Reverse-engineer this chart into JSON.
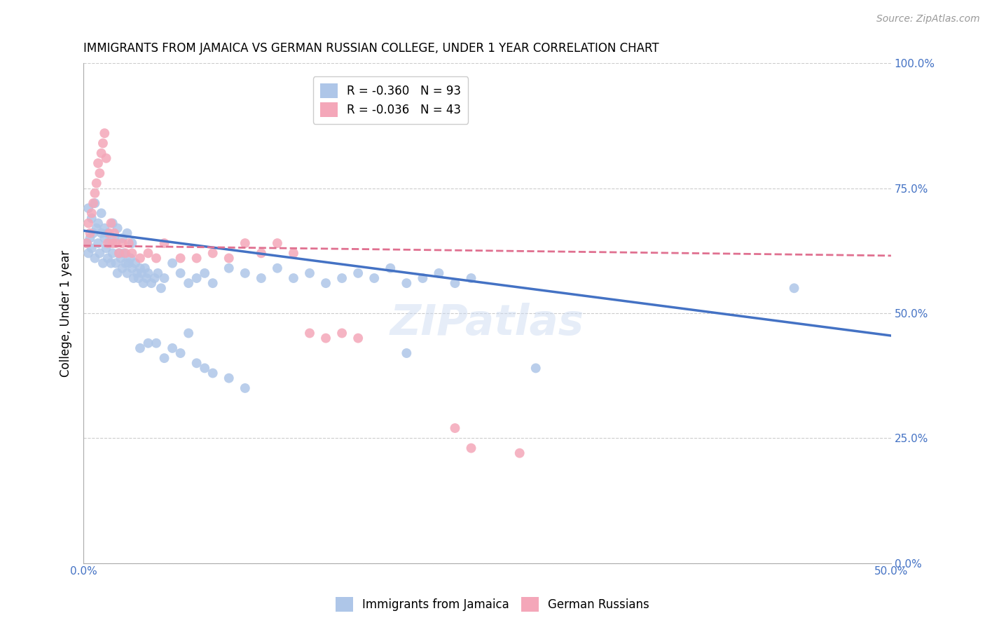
{
  "title": "IMMIGRANTS FROM JAMAICA VS GERMAN RUSSIAN COLLEGE, UNDER 1 YEAR CORRELATION CHART",
  "source": "Source: ZipAtlas.com",
  "ylabel_label": "College, Under 1 year",
  "series1_name": "Immigrants from Jamaica",
  "series2_name": "German Russians",
  "series1_color": "#aec6e8",
  "series2_color": "#f4a7b9",
  "series1_line_color": "#4472c4",
  "series2_line_color": "#e07090",
  "watermark": "ZIPatlas",
  "xmin": 0.0,
  "xmax": 0.5,
  "ymin": 0.0,
  "ymax": 1.0,
  "x_tick_positions": [
    0.0,
    0.1,
    0.2,
    0.3,
    0.4,
    0.5
  ],
  "x_tick_labels": [
    "0.0%",
    "",
    "",
    "",
    "",
    "50.0%"
  ],
  "y_tick_positions": [
    0.0,
    0.25,
    0.5,
    0.75,
    1.0
  ],
  "y_tick_labels": [
    "0.0%",
    "25.0%",
    "50.0%",
    "75.0%",
    "100.0%"
  ],
  "legend1_label": "R = -0.360   N = 93",
  "legend2_label": "R = -0.036   N = 43",
  "blue_line_x": [
    0.0,
    0.5
  ],
  "blue_line_y": [
    0.665,
    0.455
  ],
  "pink_line_x": [
    0.0,
    0.5
  ],
  "pink_line_y": [
    0.635,
    0.615
  ],
  "jamaica_x": [
    0.002,
    0.003,
    0.004,
    0.005,
    0.006,
    0.007,
    0.008,
    0.009,
    0.01,
    0.011,
    0.012,
    0.013,
    0.014,
    0.015,
    0.016,
    0.017,
    0.018,
    0.019,
    0.02,
    0.021,
    0.022,
    0.023,
    0.024,
    0.025,
    0.026,
    0.027,
    0.028,
    0.029,
    0.03,
    0.031,
    0.032,
    0.033,
    0.034,
    0.035,
    0.036,
    0.037,
    0.038,
    0.039,
    0.04,
    0.042,
    0.044,
    0.046,
    0.048,
    0.05,
    0.055,
    0.06,
    0.065,
    0.07,
    0.075,
    0.08,
    0.09,
    0.1,
    0.11,
    0.12,
    0.13,
    0.14,
    0.15,
    0.16,
    0.17,
    0.18,
    0.19,
    0.2,
    0.21,
    0.22,
    0.23,
    0.24,
    0.003,
    0.005,
    0.007,
    0.009,
    0.011,
    0.013,
    0.015,
    0.018,
    0.021,
    0.024,
    0.027,
    0.03,
    0.035,
    0.04,
    0.045,
    0.05,
    0.055,
    0.06,
    0.065,
    0.07,
    0.075,
    0.08,
    0.09,
    0.1,
    0.2,
    0.28,
    0.44
  ],
  "jamaica_y": [
    0.64,
    0.62,
    0.65,
    0.63,
    0.66,
    0.61,
    0.67,
    0.64,
    0.62,
    0.66,
    0.6,
    0.65,
    0.63,
    0.61,
    0.64,
    0.6,
    0.62,
    0.65,
    0.6,
    0.58,
    0.62,
    0.61,
    0.59,
    0.62,
    0.6,
    0.58,
    0.6,
    0.61,
    0.59,
    0.57,
    0.6,
    0.58,
    0.57,
    0.59,
    0.58,
    0.56,
    0.59,
    0.57,
    0.58,
    0.56,
    0.57,
    0.58,
    0.55,
    0.57,
    0.6,
    0.58,
    0.56,
    0.57,
    0.58,
    0.56,
    0.59,
    0.58,
    0.57,
    0.59,
    0.57,
    0.58,
    0.56,
    0.57,
    0.58,
    0.57,
    0.59,
    0.56,
    0.57,
    0.58,
    0.56,
    0.57,
    0.71,
    0.69,
    0.72,
    0.68,
    0.7,
    0.67,
    0.66,
    0.68,
    0.67,
    0.65,
    0.66,
    0.64,
    0.43,
    0.44,
    0.44,
    0.41,
    0.43,
    0.42,
    0.46,
    0.4,
    0.39,
    0.38,
    0.37,
    0.35,
    0.42,
    0.39,
    0.55
  ],
  "german_x": [
    0.002,
    0.003,
    0.004,
    0.005,
    0.006,
    0.007,
    0.008,
    0.009,
    0.01,
    0.011,
    0.012,
    0.013,
    0.014,
    0.015,
    0.016,
    0.017,
    0.018,
    0.019,
    0.02,
    0.022,
    0.024,
    0.026,
    0.028,
    0.03,
    0.035,
    0.04,
    0.045,
    0.05,
    0.06,
    0.07,
    0.08,
    0.09,
    0.1,
    0.11,
    0.12,
    0.13,
    0.14,
    0.15,
    0.16,
    0.17,
    0.23,
    0.24,
    0.27
  ],
  "german_y": [
    0.64,
    0.68,
    0.66,
    0.7,
    0.72,
    0.74,
    0.76,
    0.8,
    0.78,
    0.82,
    0.84,
    0.86,
    0.81,
    0.64,
    0.66,
    0.68,
    0.64,
    0.66,
    0.64,
    0.62,
    0.64,
    0.62,
    0.64,
    0.62,
    0.61,
    0.62,
    0.61,
    0.64,
    0.61,
    0.61,
    0.62,
    0.61,
    0.64,
    0.62,
    0.64,
    0.62,
    0.46,
    0.45,
    0.46,
    0.45,
    0.27,
    0.23,
    0.22
  ]
}
